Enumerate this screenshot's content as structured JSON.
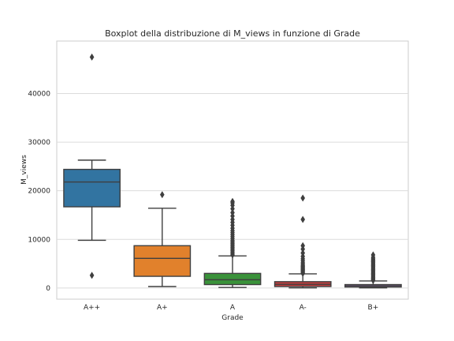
{
  "chart_data": {
    "type": "boxplot",
    "title": "Boxplot della distribuzione di M_views in funzione di Grade",
    "xlabel": "Grade",
    "ylabel": "M_views",
    "ylim": [
      -2300,
      50800
    ],
    "yticks": [
      0,
      10000,
      20000,
      30000,
      40000
    ],
    "grid": "horizontal",
    "categories": [
      "A++",
      "A+",
      "A",
      "A-",
      "B+"
    ],
    "colors": [
      "#3274a1",
      "#e1812c",
      "#3a923a",
      "#c03d3e",
      "#9372b2"
    ],
    "boxes": [
      {
        "category": "A++",
        "whislo": 9800,
        "q1": 16700,
        "median": 21800,
        "q3": 24400,
        "whishi": 26300,
        "fliers": [
          2600,
          47500
        ]
      },
      {
        "category": "A+",
        "whislo": 300,
        "q1": 2400,
        "median": 6100,
        "q3": 8700,
        "whishi": 16400,
        "fliers": [
          19200
        ]
      },
      {
        "category": "A",
        "whislo": 100,
        "q1": 700,
        "median": 1700,
        "q3": 3000,
        "whishi": 6600,
        "fliers": [
          6800,
          7100,
          7400,
          7700,
          8000,
          8300,
          8600,
          8900,
          9200,
          9500,
          9800,
          10200,
          10600,
          11000,
          11400,
          11800,
          12300,
          12900,
          13500,
          14100,
          14800,
          15500,
          16300,
          17000,
          17500,
          17800
        ]
      },
      {
        "category": "A-",
        "whislo": 30,
        "q1": 300,
        "median": 750,
        "q3": 1300,
        "whishi": 2900,
        "fliers": [
          3000,
          3200,
          3400,
          3600,
          3800,
          4000,
          4200,
          4400,
          4600,
          4900,
          5200,
          5600,
          6000,
          6500,
          7200,
          8000,
          8700,
          14100,
          18500
        ]
      },
      {
        "category": "B+",
        "whislo": 20,
        "q1": 200,
        "median": 450,
        "q3": 700,
        "whishi": 1450,
        "fliers": [
          1550,
          1700,
          1850,
          2000,
          2200,
          2400,
          2600,
          2800,
          3000,
          3200,
          3400,
          3600,
          3800,
          4000,
          4200,
          4400,
          4600,
          4800,
          5000,
          5200,
          5400,
          5600,
          5800,
          6000,
          6300,
          6800
        ]
      }
    ]
  }
}
